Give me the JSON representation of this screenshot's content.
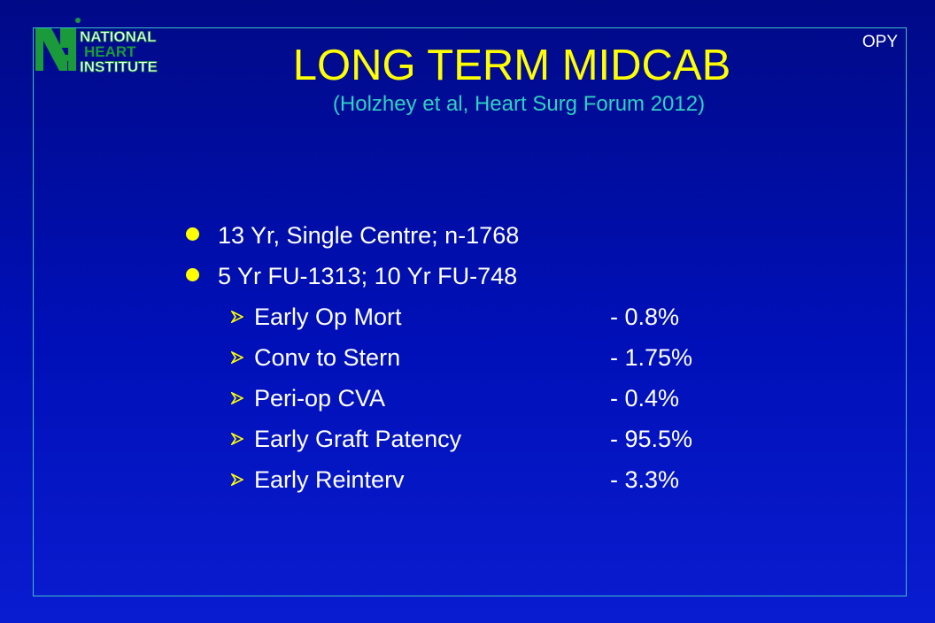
{
  "logo": {
    "line1": "NATIONAL",
    "line2": "HEART",
    "line3": "INSTITUTE",
    "colors": {
      "green": "#1a9a3a",
      "white": "#ffffff"
    }
  },
  "corner_tag": "OPY",
  "title": "LONG TERM MIDCAB",
  "subtitle": "(Holzhey et al, Heart Surg Forum 2012)",
  "bullets": [
    {
      "text": "13 Yr, Single Centre; n-1768"
    },
    {
      "text": "5 Yr FU-1313; 10 Yr FU-748"
    }
  ],
  "sub_items": [
    {
      "label": "Early Op Mort",
      "value": "- 0.8%"
    },
    {
      "label": "Conv to Stern",
      "value": "- 1.75%"
    },
    {
      "label": "Peri-op CVA",
      "value": "- 0.4%"
    },
    {
      "label": "Early Graft Patency",
      "value": "- 95.5%"
    },
    {
      "label": "Early Reinterv",
      "value": "- 3.3%"
    }
  ],
  "colors": {
    "background_top": "#000a87",
    "background_bottom": "#0a1cd0",
    "title": "#ffff00",
    "subtitle": "#2fd1c0",
    "frame": "#3fbfc4",
    "bullet": "#ffff00",
    "text": "#ffffff"
  },
  "icons": {
    "bullet": "filled-circle",
    "sub_bullet": "arrow-head-right"
  }
}
